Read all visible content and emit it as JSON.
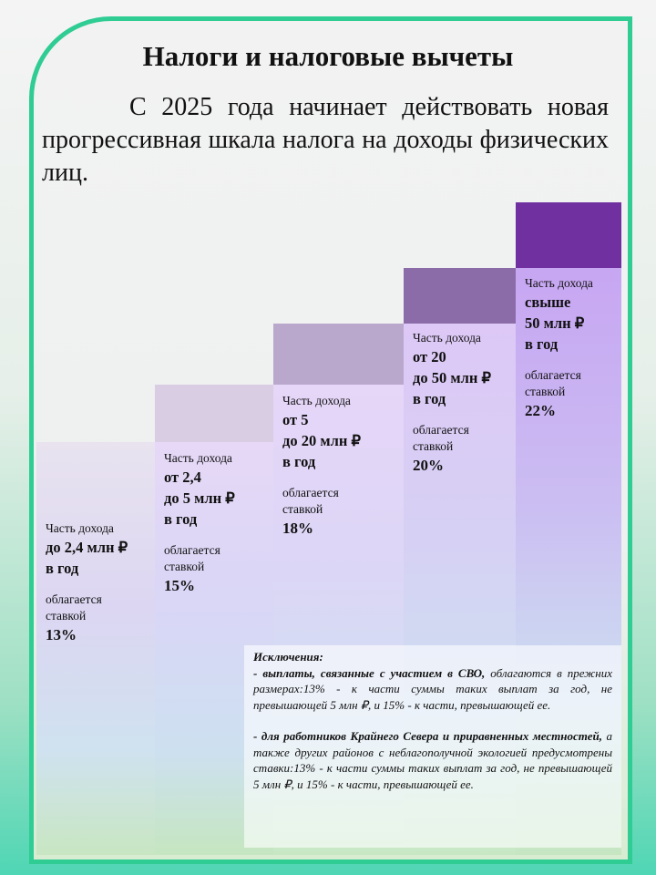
{
  "title": "Налоги и налоговые вычеты",
  "intro": "С 2025 года начинает действовать новая прогрессивная шкала налога на доходы физических лиц.",
  "steps": [
    {
      "label": "Часть дохода",
      "range": [
        "до 2,4 млн ₽",
        "в год"
      ],
      "tax": [
        "облагается",
        "ставкой"
      ],
      "rate": "13%"
    },
    {
      "label": "Часть дохода",
      "range": [
        "от 2,4",
        "до 5 млн ₽",
        "в год"
      ],
      "tax": [
        "облагается",
        "ставкой"
      ],
      "rate": "15%"
    },
    {
      "label": "Часть дохода",
      "range": [
        "от  5",
        "до 20 млн ₽",
        "в год"
      ],
      "tax": [
        "облагается",
        "ставкой"
      ],
      "rate": "18%"
    },
    {
      "label": "Часть дохода",
      "range": [
        "от 20",
        "до 50 млн ₽",
        "в год"
      ],
      "tax": [
        "облагается",
        "ставкой"
      ],
      "rate": "20%"
    },
    {
      "label": "Часть дохода",
      "range": [
        "свыше",
        "50 млн ₽",
        "в год"
      ],
      "tax": [
        "облагается",
        "ставкой"
      ],
      "rate": "22%"
    }
  ],
  "exceptions": {
    "title": "Исключения:",
    "items": [
      {
        "bold": "- выплаты, связанные с участием в СВО,",
        "text": " облагаются в прежних размерах:13% - к части суммы таких выплат за год, не превышающей 5 млн ₽, и 15% - к части, превышающей ее."
      },
      {
        "bold": "- для работников Крайнего Севера и приравненных местностей,",
        "text": " а также других районов с неблагополучной экологией предусмотрены ставки:13% - к части суммы таких выплат за год, не превышающей 5 млн ₽, и 15% - к части, превышающей ее."
      }
    ]
  }
}
